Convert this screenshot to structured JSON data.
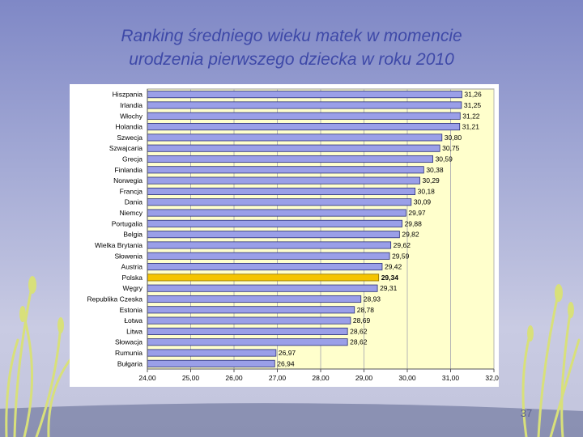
{
  "slide": {
    "title_line1": "Ranking średniego wieku matek w momencie",
    "title_line2": "urodzenia pierwszego dziecka w roku 2010",
    "page_number": "37"
  },
  "colors": {
    "bar": "#9a9fe8",
    "bar_highlight": "#f5c400",
    "plot_background": "#ffffcc",
    "title": "#3e49a8"
  },
  "chart_data": {
    "type": "bar",
    "orientation": "horizontal",
    "title": "",
    "xlabel": "",
    "ylabel": "",
    "xlim": [
      24,
      32
    ],
    "xticks": [
      24,
      25,
      26,
      27,
      28,
      29,
      30,
      31,
      32
    ],
    "xtick_labels": [
      "24,00",
      "25,00",
      "26,00",
      "27,00",
      "28,00",
      "29,00",
      "30,00",
      "31,00",
      "32,00"
    ],
    "grid": "vertical",
    "legend": "none",
    "highlight_category": "Polska",
    "categories": [
      "Hiszpania",
      "Irlandia",
      "Włochy",
      "Holandia",
      "Szwecja",
      "Szwajcaria",
      "Grecja",
      "Finlandia",
      "Norwegia",
      "Francja",
      "Dania",
      "Niemcy",
      "Portugalia",
      "Belgia",
      "Wielka Brytania",
      "Słowenia",
      "Austria",
      "Polska",
      "Węgry",
      "Republika Czeska",
      "Estonia",
      "Łotwa",
      "Litwa",
      "Słowacja",
      "Rumunia",
      "Bułgaria"
    ],
    "values": [
      31.26,
      31.25,
      31.22,
      31.21,
      30.8,
      30.75,
      30.59,
      30.38,
      30.29,
      30.18,
      30.09,
      29.97,
      29.88,
      29.82,
      29.62,
      29.59,
      29.42,
      29.34,
      29.31,
      28.93,
      28.78,
      28.69,
      28.62,
      28.62,
      26.97,
      26.94
    ],
    "value_labels": [
      "31,26",
      "31,25",
      "31,22",
      "31,21",
      "30,80",
      "30,75",
      "30,59",
      "30,38",
      "30,29",
      "30,18",
      "30,09",
      "29,97",
      "29,88",
      "29,82",
      "29,62",
      "29,59",
      "29,42",
      "29,34",
      "29,31",
      "28,93",
      "28,78",
      "28,69",
      "28,62",
      "28,62",
      "26,97",
      "26,94"
    ]
  }
}
